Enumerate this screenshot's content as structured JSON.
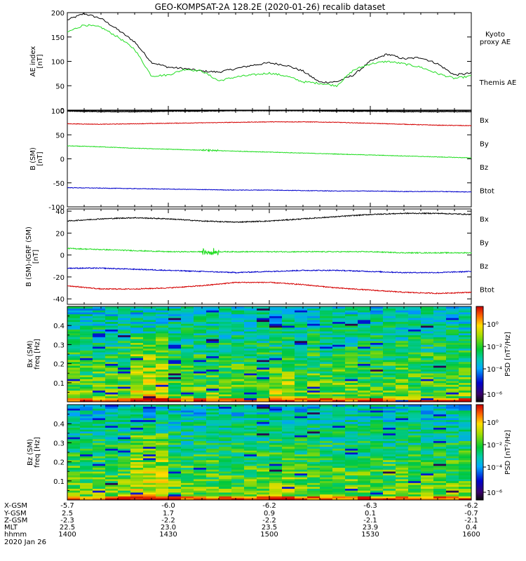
{
  "title": "GEO-KOMPSAT-2A 128.2E (2020-01-26) recalib dataset",
  "colors": {
    "black": "#000000",
    "red": "#d40000",
    "green": "#22dd22",
    "blue": "#0000cc",
    "kyoto": "#22dd22"
  },
  "chart_data": [
    {
      "type": "line",
      "panel": "ae",
      "ylabel": "AE index",
      "yunit": "[nT]",
      "ylim": [
        0,
        200
      ],
      "yticks": [
        "0",
        "50",
        "100",
        "150",
        "200"
      ],
      "yticks_values": [
        0,
        50,
        100,
        150,
        200
      ],
      "x_minutes": [
        0,
        5,
        10,
        15,
        20,
        25,
        30,
        35,
        40,
        45,
        50,
        55,
        60,
        65,
        70,
        75,
        80,
        85,
        90,
        95,
        100,
        105,
        110,
        115,
        120
      ],
      "series": [
        {
          "name": "Themis AE",
          "color": "#000000",
          "values": [
            185,
            198,
            188,
            165,
            140,
            98,
            88,
            85,
            80,
            78,
            85,
            92,
            97,
            92,
            80,
            57,
            58,
            72,
            100,
            115,
            105,
            108,
            95,
            72,
            76
          ]
        },
        {
          "name": "Kyoto proxy AE",
          "color": "#22dd22",
          "values": [
            160,
            175,
            170,
            150,
            125,
            70,
            72,
            84,
            80,
            60,
            68,
            72,
            76,
            70,
            58,
            55,
            50,
            82,
            95,
            100,
            95,
            88,
            75,
            65,
            70
          ]
        }
      ],
      "legend": [
        "Kyoto proxy AE",
        "Themis AE"
      ]
    },
    {
      "type": "line",
      "panel": "b_sm",
      "ylabel": "B (SM)",
      "yunit": "[nT]",
      "ylim": [
        -100,
        100
      ],
      "yticks": [
        "-100",
        "-50",
        "0",
        "50",
        "100"
      ],
      "yticks_values": [
        -100,
        -50,
        0,
        50,
        100
      ],
      "x_minutes": [
        0,
        10,
        20,
        30,
        40,
        50,
        60,
        70,
        80,
        90,
        100,
        110,
        120
      ],
      "series": [
        {
          "name": "Btot",
          "color": "#000000",
          "values": [
            99,
            98,
            98,
            99,
            99,
            100,
            100,
            100,
            99,
            99,
            98,
            98,
            98
          ]
        },
        {
          "name": "Bz",
          "color": "#d40000",
          "values": [
            73,
            72,
            73,
            74,
            75,
            76,
            77,
            77,
            76,
            74,
            72,
            70,
            69
          ]
        },
        {
          "name": "By",
          "color": "#22dd22",
          "values": [
            27,
            25,
            22,
            20,
            18,
            16,
            14,
            12,
            10,
            8,
            6,
            4,
            2
          ]
        },
        {
          "name": "Bx",
          "color": "#0000cc",
          "values": [
            -60,
            -61,
            -62,
            -63,
            -64,
            -65,
            -65,
            -66,
            -67,
            -67,
            -68,
            -68,
            -69
          ]
        }
      ],
      "legend": [
        "Bx",
        "By",
        "Bz",
        "Btot"
      ]
    },
    {
      "type": "line",
      "panel": "b_igrf",
      "ylabel": "B (SM)-IGRF (SM)",
      "yunit": "[nT]",
      "ylim": [
        -45,
        42
      ],
      "yticks": [
        "-40",
        "-20",
        "0",
        "20",
        "40"
      ],
      "yticks_values": [
        -40,
        -20,
        0,
        20,
        40
      ],
      "x_minutes": [
        0,
        10,
        20,
        30,
        40,
        50,
        60,
        70,
        80,
        90,
        100,
        110,
        120
      ],
      "series": [
        {
          "name": "Btot",
          "color": "#000000",
          "values": [
            31,
            33,
            34,
            33,
            31,
            30,
            31,
            33,
            35,
            37,
            38,
            38,
            37
          ]
        },
        {
          "name": "By",
          "color": "#22dd22",
          "values": [
            6,
            5,
            4,
            3,
            3,
            3,
            3,
            3,
            3,
            3,
            2,
            2,
            2
          ]
        },
        {
          "name": "Bx",
          "color": "#0000cc",
          "values": [
            -12,
            -12,
            -13,
            -14,
            -15,
            -16,
            -15,
            -14,
            -14,
            -15,
            -16,
            -16,
            -15
          ]
        },
        {
          "name": "Bz",
          "color": "#d40000",
          "values": [
            -28,
            -31,
            -31,
            -30,
            -28,
            -25,
            -25,
            -27,
            -30,
            -32,
            -34,
            -35,
            -34
          ]
        }
      ],
      "legend": [
        "Bx",
        "By",
        "Bz",
        "Btot"
      ]
    },
    {
      "type": "heatmap",
      "panel": "bx_psd",
      "ylabel": "Bx (SM)",
      "ylabel2": "freq [Hz]",
      "ylim": [
        0,
        0.5
      ],
      "yticks": [
        "0.1",
        "0.2",
        "0.3",
        "0.4"
      ],
      "yticks_values": [
        0.1,
        0.2,
        0.3,
        0.4
      ],
      "colorbar_label": "PSD [nT²/Hz]",
      "colorbar_ticks": [
        "10⁰",
        "10⁻²",
        "10⁻⁴",
        "10⁻⁶"
      ]
    },
    {
      "type": "heatmap",
      "panel": "bz_psd",
      "ylabel": "Bz (SM)",
      "ylabel2": "freq [Hz]",
      "ylim": [
        0,
        0.5
      ],
      "yticks": [
        "0.1",
        "0.2",
        "0.3",
        "0.4"
      ],
      "yticks_values": [
        0.1,
        0.2,
        0.3,
        0.4
      ],
      "colorbar_label": "PSD [nT²/Hz]",
      "colorbar_ticks": [
        "10⁰",
        "10⁻²",
        "10⁻⁴",
        "10⁻⁶"
      ]
    }
  ],
  "ephemeris": {
    "row_labels": [
      "X-GSM",
      "Y-GSM",
      "Z-GSM",
      "MLT",
      "hhmm"
    ],
    "columns": [
      {
        "x": "-5.7",
        "y": "2.5",
        "z": "-2.3",
        "mlt": "22.5",
        "hhmm": "1400"
      },
      {
        "x": "-6.0",
        "y": "1.7",
        "z": "-2.2",
        "mlt": "23.0",
        "hhmm": "1430"
      },
      {
        "x": "-6.2",
        "y": "0.9",
        "z": "-2.2",
        "mlt": "23.5",
        "hhmm": "1500"
      },
      {
        "x": "-6.3",
        "y": "0.1",
        "z": "-2.1",
        "mlt": "23.9",
        "hhmm": "1530"
      },
      {
        "x": "-6.2",
        "y": "-0.7",
        "z": "-2.1",
        "mlt": "0.4",
        "hhmm": "1600"
      }
    ],
    "date": "2020 Jan 26"
  }
}
